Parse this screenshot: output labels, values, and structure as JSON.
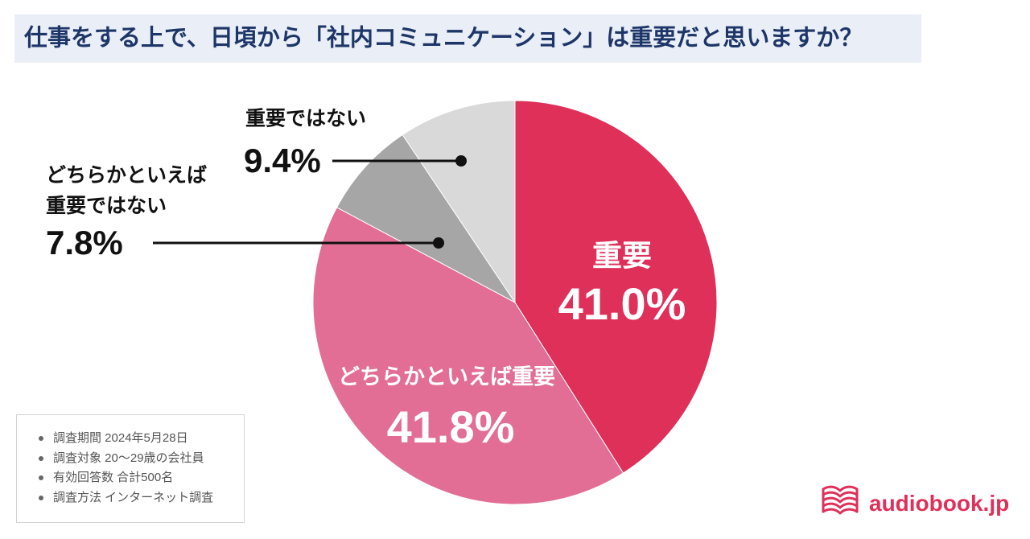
{
  "chart_data": {
    "type": "pie",
    "title": "仕事をする上で、日頃から「社内コミュニケーション」は重要だと思いますか？",
    "categories": [
      "重要",
      "どちらかといえば重要",
      "どちらかといえば\n重要ではない",
      "重要ではない"
    ],
    "values": [
      41.0,
      41.8,
      7.8,
      9.4
    ],
    "value_labels": [
      "41.0%",
      "41.8%",
      "7.8%",
      "9.4%"
    ],
    "colors": [
      "#DE3059",
      "#E26E96",
      "#A6A6A6",
      "#D9D9D9"
    ]
  },
  "notes": [
    "調査期間 2024年5月28日",
    "調査対象 20〜29歳の会社員",
    "有効回答数 合計500名",
    "調査方法 インターネット調査"
  ],
  "brand": {
    "name": "audiobook.jp",
    "color": "#E0305A",
    "icon": "book-icon"
  }
}
